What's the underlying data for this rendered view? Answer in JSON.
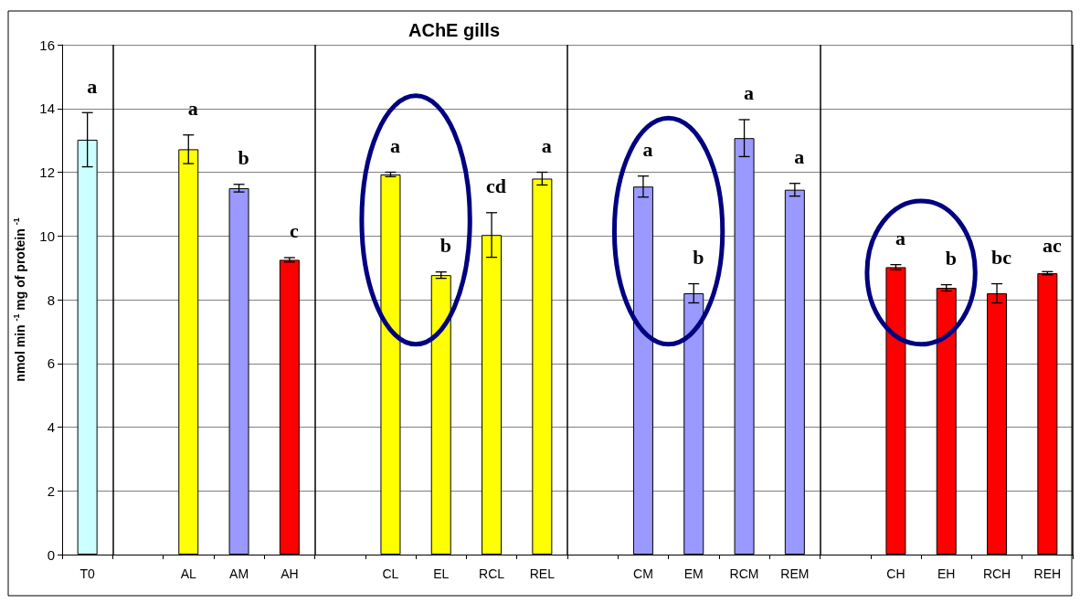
{
  "chart_data": {
    "type": "bar",
    "title": "AChE gills",
    "ylabel": "nmol min $^{-1}$ mg of protein $^{-1}$",
    "categories": [
      "T0",
      null,
      "AL",
      "AM",
      "AH",
      null,
      "CL",
      "EL",
      "RCL",
      "REL",
      null,
      "CM",
      "EM",
      "RCM",
      "REM",
      null,
      "CH",
      "EH",
      "RCH",
      "REH"
    ],
    "values": [
      13.02,
      null,
      12.72,
      11.5,
      9.25,
      null,
      11.93,
      8.77,
      10.03,
      11.8,
      null,
      11.55,
      8.2,
      13.07,
      11.45,
      null,
      9.02,
      8.37,
      8.2,
      8.83
    ],
    "errors": [
      0.85,
      null,
      0.45,
      0.12,
      0.07,
      null,
      0.07,
      0.1,
      0.7,
      0.2,
      null,
      0.33,
      0.3,
      0.58,
      0.2,
      null,
      0.08,
      0.1,
      0.3,
      0.05
    ],
    "colors": [
      "#ccffff",
      null,
      "#ffff00",
      "#9999ff",
      "#ff0000",
      null,
      "#ffff00",
      "#ffff00",
      "#ffff00",
      "#ffff00",
      null,
      "#9999ff",
      "#9999ff",
      "#9999ff",
      "#9999ff",
      null,
      "#ff0000",
      "#ff0000",
      "#ff0000",
      "#ff0000"
    ],
    "value_labels": [
      "a",
      null,
      "a",
      "b",
      "c",
      null,
      "a",
      "b",
      "cd",
      "a",
      null,
      "a",
      "b",
      "a",
      "a",
      null,
      "a",
      "b",
      "bc",
      "ac"
    ],
    "ylim": [
      0,
      16
    ],
    "yticks": [
      0,
      2,
      4,
      6,
      8,
      10,
      12,
      14,
      16
    ],
    "grid": "y"
  }
}
